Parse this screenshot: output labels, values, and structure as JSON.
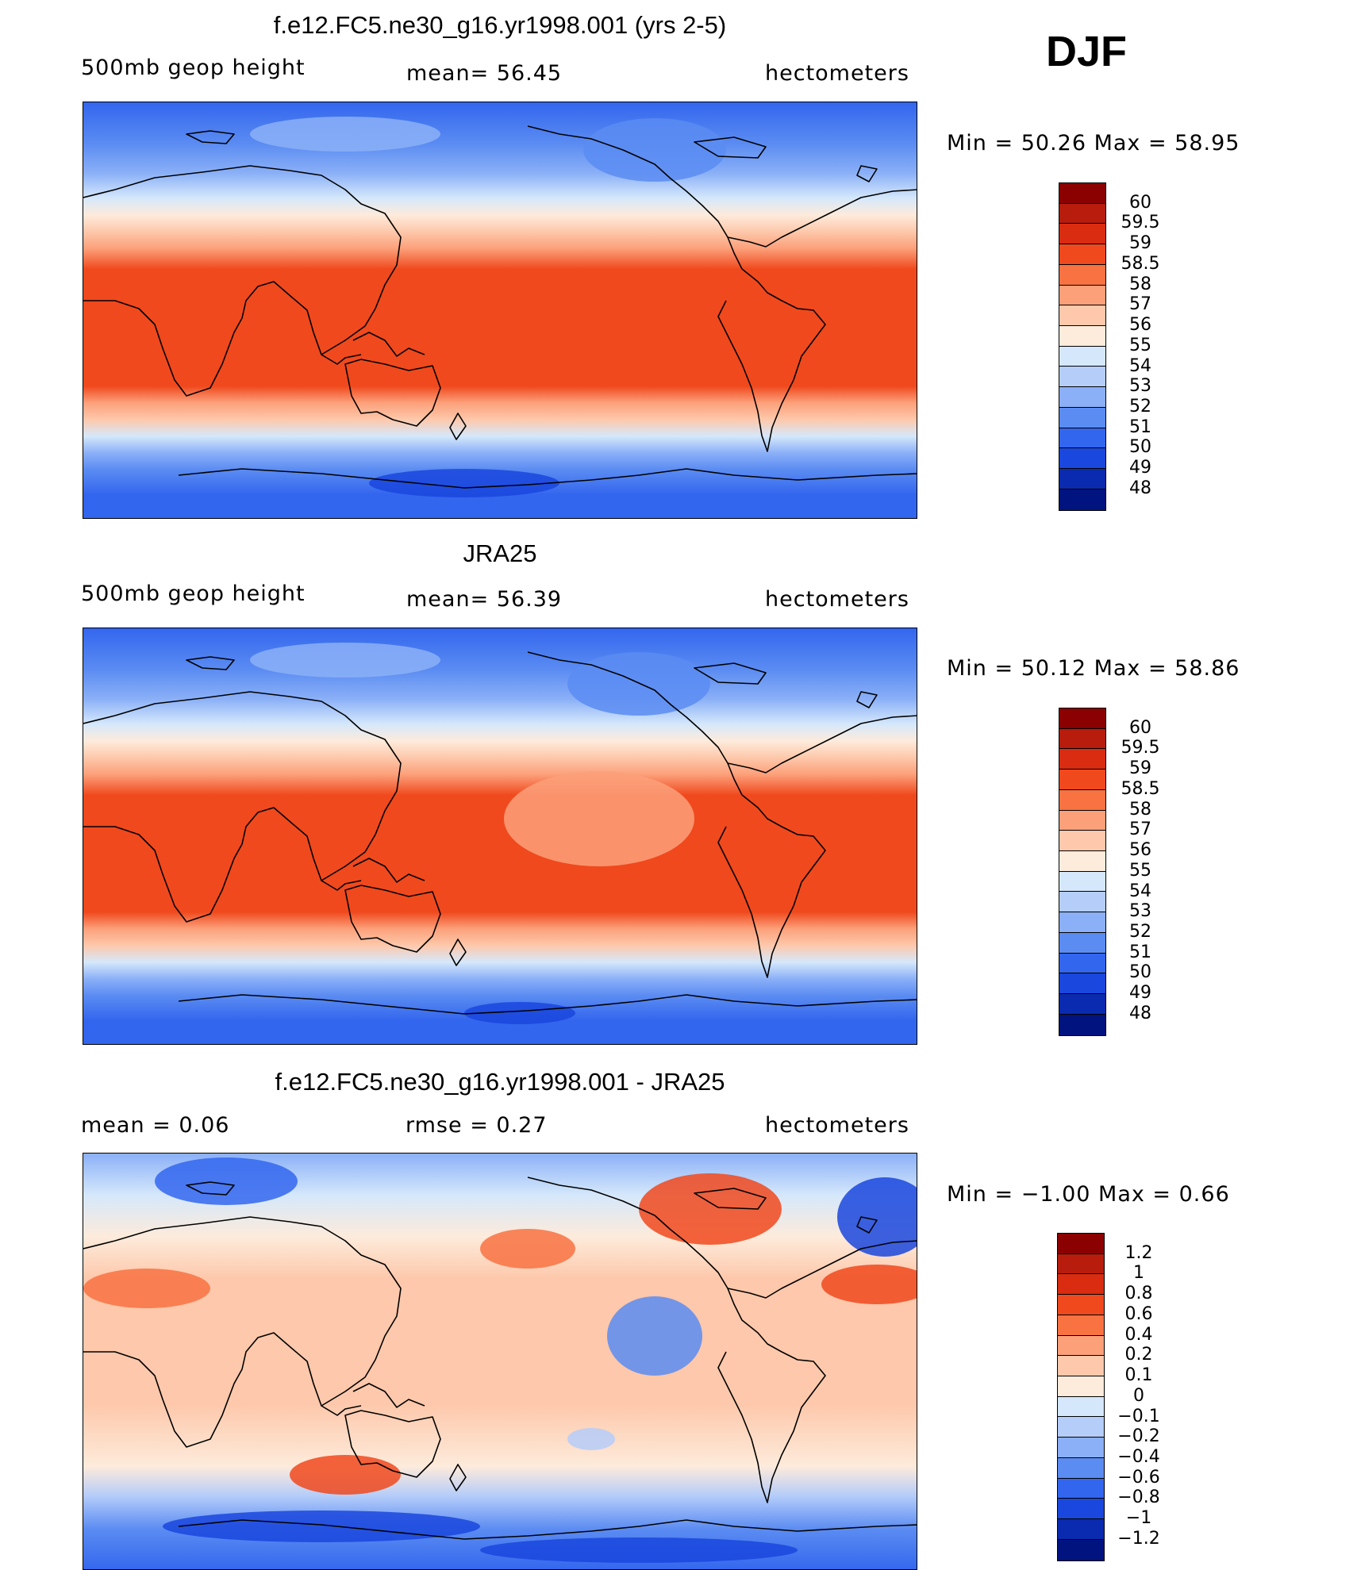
{
  "season": "DJF",
  "panels": [
    {
      "title": "f.e12.FC5.ne30_g16.yr1998.001 (yrs 2-5)",
      "left_label": "500mb  geop  height",
      "center_label": "mean=   56.45",
      "right_label": "hectometers",
      "min_max": "Min  =    50.26  Max  =    58.95",
      "colorbar": {
        "ticks": [
          "60",
          "59.5",
          "59",
          "58.5",
          "58",
          "57",
          "56",
          "55",
          "54",
          "53",
          "52",
          "51",
          "50",
          "49",
          "48"
        ],
        "colors": [
          "#8b0000",
          "#b71c0c",
          "#d92c10",
          "#f0491d",
          "#f87242",
          "#fca07a",
          "#fdc8ab",
          "#fdebdb",
          "#d5e8fb",
          "#b5cdf9",
          "#8bb0f7",
          "#5b8cf2",
          "#3366ee",
          "#1a47dd",
          "#0a2aaf",
          "#00137f"
        ]
      },
      "map": {
        "kind": "model"
      }
    },
    {
      "title": "JRA25",
      "left_label": "500mb  geop  height",
      "center_label": "mean=   56.39",
      "right_label": "hectometers",
      "min_max": "Min  =    50.12  Max  =    58.86",
      "colorbar": {
        "ticks": [
          "60",
          "59.5",
          "59",
          "58.5",
          "58",
          "57",
          "56",
          "55",
          "54",
          "53",
          "52",
          "51",
          "50",
          "49",
          "48"
        ],
        "colors": [
          "#8b0000",
          "#b71c0c",
          "#d92c10",
          "#f0491d",
          "#f87242",
          "#fca07a",
          "#fdc8ab",
          "#fdebdb",
          "#d5e8fb",
          "#b5cdf9",
          "#8bb0f7",
          "#5b8cf2",
          "#3366ee",
          "#1a47dd",
          "#0a2aaf",
          "#00137f"
        ]
      },
      "map": {
        "kind": "obs"
      }
    },
    {
      "title": "f.e12.FC5.ne30_g16.yr1998.001 - JRA25",
      "left_label": "mean  =      0.06",
      "center_label": "rmse  =      0.27",
      "right_label": "hectometers",
      "min_max": "Min  =    −1.00  Max  =      0.66",
      "colorbar": {
        "ticks": [
          "1.2",
          "1",
          "0.8",
          "0.6",
          "0.4",
          "0.2",
          "0.1",
          "0",
          "−0.1",
          "−0.2",
          "−0.4",
          "−0.6",
          "−0.8",
          "−1",
          "−1.2"
        ],
        "colors": [
          "#8b0000",
          "#b71c0c",
          "#d92c10",
          "#f0491d",
          "#f87242",
          "#fca07a",
          "#fdc8ab",
          "#fdebdb",
          "#d5e8fb",
          "#b5cdf9",
          "#8bb0f7",
          "#5b8cf2",
          "#3366ee",
          "#1a47dd",
          "#0a2aaf",
          "#00137f"
        ]
      },
      "map": {
        "kind": "diff"
      }
    }
  ]
}
